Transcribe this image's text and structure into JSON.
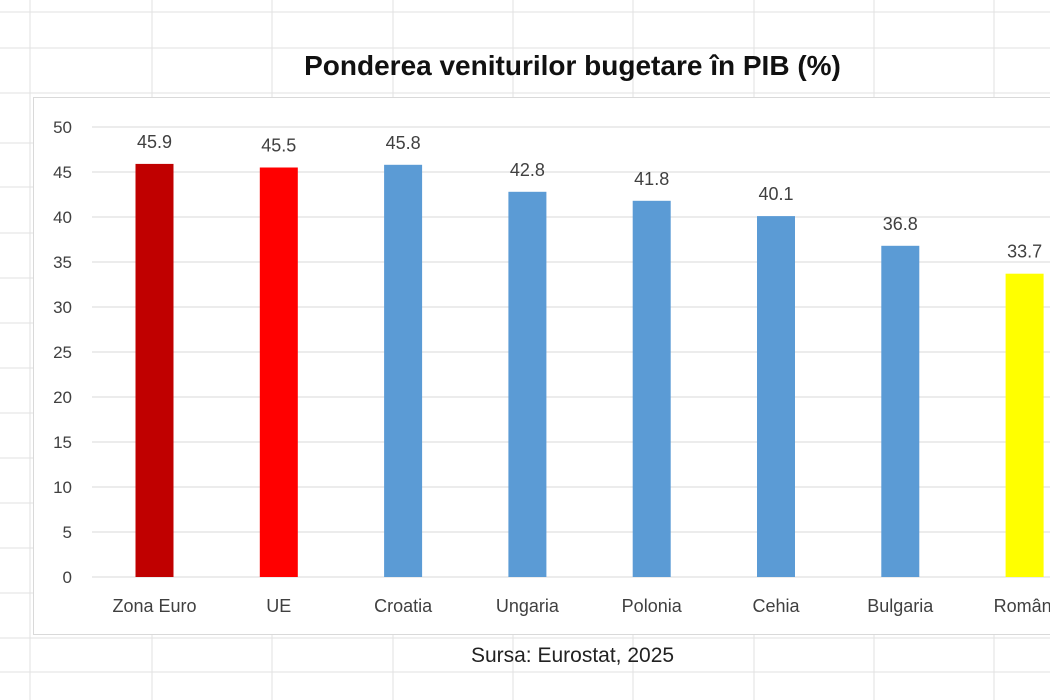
{
  "chart_data": {
    "type": "bar",
    "title": "Ponderea veniturilor bugetare în PIB (%)",
    "categories": [
      "Zona Euro",
      "UE",
      "Croatia",
      "Ungaria",
      "Polonia",
      "Cehia",
      "Bulgaria",
      "Români"
    ],
    "series": [
      {
        "values": [
          45.9,
          45.5,
          45.8,
          42.8,
          41.8,
          40.1,
          36.8,
          33.7
        ]
      }
    ],
    "data_labels": [
      "45.9",
      "45.5",
      "45.8",
      "42.8",
      "41.8",
      "40.1",
      "36.8",
      "33.7"
    ],
    "bar_colors": [
      "#c00000",
      "#ff0000",
      "#5b9bd5",
      "#5b9bd5",
      "#5b9bd5",
      "#5b9bd5",
      "#5b9bd5",
      "#ffff00"
    ],
    "yticks": [
      "0",
      "5",
      "10",
      "15",
      "20",
      "25",
      "30",
      "35",
      "40",
      "45",
      "50"
    ],
    "ylim": [
      0,
      50
    ],
    "grid": true,
    "legend": "none",
    "source": "Sursa: Eurostat, 2025"
  }
}
